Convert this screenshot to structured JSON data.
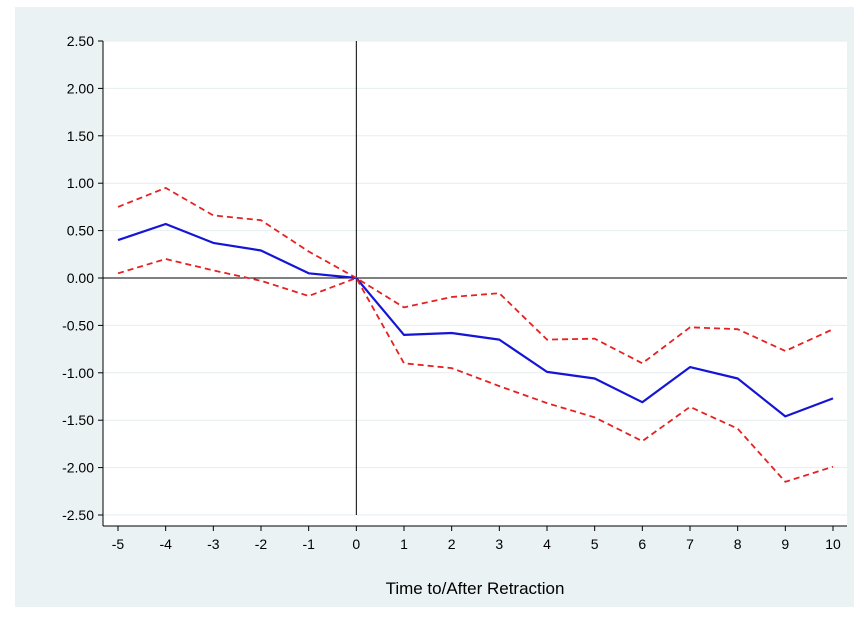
{
  "chart_data": {
    "type": "line",
    "title": "",
    "xlabel": "Time to/After Retraction",
    "ylabel": "",
    "x": [
      -5,
      -4,
      -3,
      -2,
      -1,
      0,
      1,
      2,
      3,
      4,
      5,
      6,
      7,
      8,
      9,
      10
    ],
    "xticks": [
      "-5",
      "-4",
      "-3",
      "-2",
      "-1",
      "0",
      "1",
      "2",
      "3",
      "4",
      "5",
      "6",
      "7",
      "8",
      "9",
      "10"
    ],
    "yticks": [
      "2.50",
      "2.00",
      "1.50",
      "1.00",
      "0.50",
      "0.00",
      "-0.50",
      "-1.00",
      "-1.50",
      "-2.00",
      "-2.50"
    ],
    "ylim": [
      -2.5,
      2.5
    ],
    "xlim": [
      -5,
      10
    ],
    "grid": "horizontal",
    "reference_lines": {
      "x": 0,
      "y": 0
    },
    "series": [
      {
        "style": "solid",
        "color": "#1515d6",
        "values": [
          0.4,
          0.57,
          0.37,
          0.29,
          0.05,
          0.0,
          -0.6,
          -0.58,
          -0.65,
          -0.99,
          -1.06,
          -1.31,
          -0.94,
          -1.06,
          -1.46,
          -1.27
        ]
      },
      {
        "style": "dashed",
        "color": "#e52121",
        "values": [
          0.75,
          0.95,
          0.66,
          0.61,
          0.28,
          0.0,
          -0.31,
          -0.2,
          -0.16,
          -0.65,
          -0.64,
          -0.9,
          -0.52,
          -0.54,
          -0.77,
          -0.54
        ]
      },
      {
        "style": "dashed",
        "color": "#e52121",
        "values": [
          0.05,
          0.2,
          0.08,
          -0.03,
          -0.19,
          0.0,
          -0.9,
          -0.95,
          -1.14,
          -1.32,
          -1.47,
          -1.72,
          -1.36,
          -1.59,
          -2.15,
          -1.99
        ]
      }
    ]
  }
}
